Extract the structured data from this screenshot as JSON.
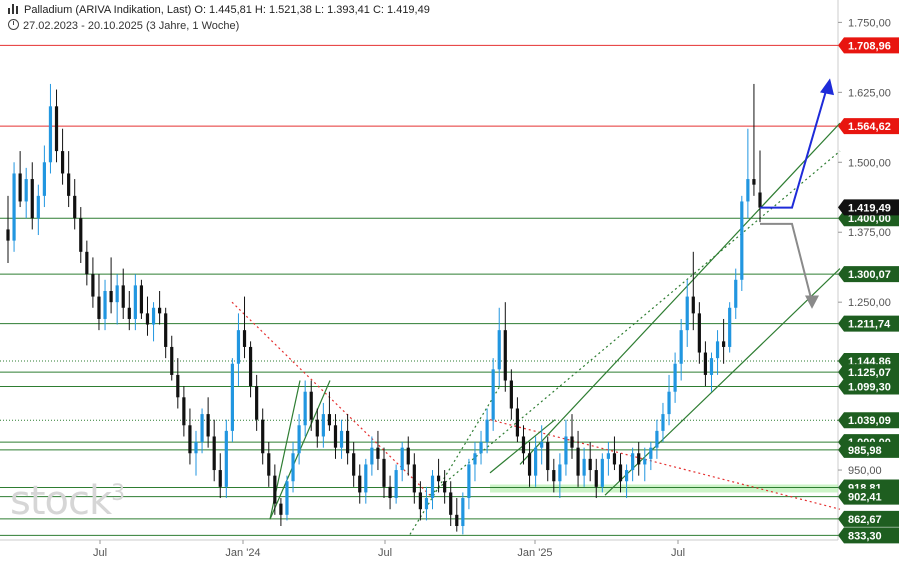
{
  "header": {
    "instrument": "Palladium (ARIVA Indikation, Last)",
    "ohlc": "O: 1.445,81  H: 1.521,38  L: 1.393,41  C: 1.419,49",
    "range": "27.02.2023 - 20.10.2025  (3 Jahre, 1 Woche)"
  },
  "brand": {
    "text": "stock",
    "sup": "3"
  },
  "chart_data": {
    "type": "candlestick",
    "x_labels": [
      "Jul",
      "Jan '24",
      "Jul",
      "Jan '25",
      "Jul"
    ],
    "y_ticks": [
      "1.750,00",
      "1.625,00",
      "1.500,00",
      "1.375,00",
      "1.250,00",
      "950,00"
    ],
    "ylim": [
      825,
      1790
    ],
    "last_price": {
      "value": 1419.49,
      "label": "1.419,49"
    },
    "red_levels": [
      {
        "value": 1708.96,
        "label": "1.708,96"
      },
      {
        "value": 1564.62,
        "label": "1.564,62"
      }
    ],
    "green_levels": [
      {
        "value": 1400.0,
        "label": "1.400,00"
      },
      {
        "value": 1300.07,
        "label": "1.300,07"
      },
      {
        "value": 1211.74,
        "label": "1.211,74"
      },
      {
        "value": 1144.86,
        "label": "1.144,86"
      },
      {
        "value": 1125.07,
        "label": "1.125,07"
      },
      {
        "value": 1099.3,
        "label": "1.099,30"
      },
      {
        "value": 1039.09,
        "label": "1.039,09"
      },
      {
        "value": 1000.0,
        "label": "1.000,00"
      },
      {
        "value": 985.98,
        "label": "985,98"
      },
      {
        "value": 918.81,
        "label": "918,81"
      },
      {
        "value": 902.41,
        "label": "902,41"
      },
      {
        "value": 862.67,
        "label": "862,67"
      },
      {
        "value": 833.3,
        "label": "833,30"
      }
    ],
    "candles": [
      [
        1380,
        1440,
        1320,
        1360
      ],
      [
        1360,
        1500,
        1340,
        1480
      ],
      [
        1480,
        1520,
        1420,
        1430
      ],
      [
        1430,
        1490,
        1400,
        1470
      ],
      [
        1470,
        1500,
        1380,
        1400
      ],
      [
        1400,
        1460,
        1370,
        1440
      ],
      [
        1440,
        1530,
        1420,
        1500
      ],
      [
        1500,
        1640,
        1480,
        1600
      ],
      [
        1600,
        1630,
        1500,
        1520
      ],
      [
        1520,
        1560,
        1460,
        1480
      ],
      [
        1480,
        1520,
        1420,
        1440
      ],
      [
        1440,
        1470,
        1380,
        1400
      ],
      [
        1400,
        1420,
        1320,
        1340
      ],
      [
        1340,
        1360,
        1280,
        1300
      ],
      [
        1300,
        1330,
        1240,
        1260
      ],
      [
        1260,
        1300,
        1200,
        1220
      ],
      [
        1220,
        1290,
        1200,
        1270
      ],
      [
        1270,
        1330,
        1230,
        1250
      ],
      [
        1250,
        1300,
        1210,
        1280
      ],
      [
        1280,
        1310,
        1220,
        1240
      ],
      [
        1240,
        1270,
        1200,
        1220
      ],
      [
        1220,
        1300,
        1200,
        1280
      ],
      [
        1280,
        1290,
        1220,
        1230
      ],
      [
        1230,
        1260,
        1190,
        1210
      ],
      [
        1210,
        1250,
        1180,
        1240
      ],
      [
        1240,
        1270,
        1210,
        1230
      ],
      [
        1230,
        1240,
        1150,
        1170
      ],
      [
        1170,
        1190,
        1110,
        1120
      ],
      [
        1120,
        1150,
        1060,
        1080
      ],
      [
        1080,
        1100,
        1010,
        1030
      ],
      [
        1030,
        1060,
        960,
        980
      ],
      [
        980,
        1020,
        940,
        1000
      ],
      [
        1000,
        1060,
        980,
        1050
      ],
      [
        1050,
        1080,
        990,
        1010
      ],
      [
        1010,
        1040,
        930,
        950
      ],
      [
        950,
        980,
        900,
        920
      ],
      [
        920,
        1040,
        900,
        1020
      ],
      [
        1020,
        1150,
        1000,
        1140
      ],
      [
        1140,
        1230,
        1100,
        1200
      ],
      [
        1200,
        1260,
        1150,
        1170
      ],
      [
        1170,
        1180,
        1080,
        1100
      ],
      [
        1100,
        1120,
        1020,
        1040
      ],
      [
        1040,
        1060,
        960,
        980
      ],
      [
        980,
        1000,
        920,
        940
      ],
      [
        940,
        960,
        870,
        890
      ],
      [
        890,
        900,
        850,
        870
      ],
      [
        870,
        940,
        860,
        930
      ],
      [
        930,
        1000,
        910,
        980
      ],
      [
        980,
        1050,
        960,
        1030
      ],
      [
        1030,
        1110,
        1010,
        1090
      ],
      [
        1090,
        1110,
        1020,
        1040
      ],
      [
        1040,
        1060,
        990,
        1010
      ],
      [
        1010,
        1070,
        990,
        1050
      ],
      [
        1050,
        1090,
        1020,
        1030
      ],
      [
        1030,
        1050,
        970,
        990
      ],
      [
        990,
        1040,
        970,
        1020
      ],
      [
        1020,
        1050,
        960,
        980
      ],
      [
        980,
        1000,
        920,
        940
      ],
      [
        940,
        960,
        890,
        910
      ],
      [
        910,
        970,
        890,
        960
      ],
      [
        960,
        1010,
        940,
        990
      ],
      [
        990,
        1020,
        950,
        970
      ],
      [
        970,
        990,
        900,
        920
      ],
      [
        920,
        940,
        880,
        900
      ],
      [
        900,
        960,
        890,
        950
      ],
      [
        950,
        1000,
        930,
        990
      ],
      [
        990,
        1010,
        940,
        960
      ],
      [
        960,
        980,
        890,
        910
      ],
      [
        910,
        930,
        860,
        880
      ],
      [
        880,
        920,
        860,
        900
      ],
      [
        900,
        950,
        880,
        940
      ],
      [
        940,
        970,
        910,
        930
      ],
      [
        930,
        950,
        890,
        910
      ],
      [
        910,
        930,
        850,
        870
      ],
      [
        870,
        900,
        840,
        850
      ],
      [
        850,
        910,
        835,
        900
      ],
      [
        900,
        970,
        880,
        960
      ],
      [
        960,
        1000,
        930,
        980
      ],
      [
        980,
        1020,
        960,
        1000
      ],
      [
        1000,
        1060,
        980,
        1040
      ],
      [
        1040,
        1150,
        1020,
        1130
      ],
      [
        1130,
        1240,
        1100,
        1200
      ],
      [
        1200,
        1250,
        1090,
        1110
      ],
      [
        1110,
        1130,
        1040,
        1060
      ],
      [
        1060,
        1080,
        1000,
        1010
      ],
      [
        1010,
        1030,
        960,
        980
      ],
      [
        980,
        1000,
        920,
        940
      ],
      [
        940,
        1010,
        920,
        990
      ],
      [
        990,
        1030,
        960,
        1000
      ],
      [
        1000,
        1010,
        930,
        950
      ],
      [
        950,
        970,
        910,
        930
      ],
      [
        930,
        980,
        900,
        960
      ],
      [
        960,
        1040,
        940,
        1010
      ],
      [
        1010,
        1050,
        970,
        990
      ],
      [
        990,
        1020,
        920,
        940
      ],
      [
        940,
        990,
        920,
        970
      ],
      [
        970,
        1000,
        930,
        950
      ],
      [
        950,
        970,
        900,
        920
      ],
      [
        920,
        980,
        910,
        970
      ],
      [
        970,
        1000,
        940,
        980
      ],
      [
        980,
        1010,
        950,
        960
      ],
      [
        960,
        980,
        910,
        930
      ],
      [
        930,
        960,
        900,
        950
      ],
      [
        950,
        990,
        930,
        980
      ],
      [
        980,
        1000,
        940,
        960
      ],
      [
        960,
        990,
        930,
        970
      ],
      [
        970,
        1000,
        950,
        990
      ],
      [
        990,
        1040,
        970,
        1020
      ],
      [
        1020,
        1070,
        1000,
        1050
      ],
      [
        1050,
        1120,
        1030,
        1090
      ],
      [
        1090,
        1160,
        1070,
        1140
      ],
      [
        1140,
        1220,
        1110,
        1200
      ],
      [
        1200,
        1290,
        1170,
        1260
      ],
      [
        1260,
        1340,
        1200,
        1230
      ],
      [
        1230,
        1250,
        1140,
        1160
      ],
      [
        1160,
        1180,
        1100,
        1120
      ],
      [
        1120,
        1160,
        1090,
        1150
      ],
      [
        1150,
        1200,
        1120,
        1180
      ],
      [
        1180,
        1220,
        1140,
        1170
      ],
      [
        1170,
        1250,
        1160,
        1240
      ],
      [
        1240,
        1310,
        1220,
        1290
      ],
      [
        1290,
        1440,
        1270,
        1430
      ],
      [
        1430,
        1560,
        1400,
        1470
      ],
      [
        1470,
        1640,
        1440,
        1460
      ],
      [
        1446,
        1521,
        1393,
        1419
      ]
    ],
    "projections": [
      {
        "color": "#1e2bd9",
        "from": [
          1419,
          1419
        ],
        "note": "up"
      },
      {
        "color": "#8a8a8a",
        "from": [
          1400,
          1400
        ],
        "note": "down"
      }
    ]
  }
}
